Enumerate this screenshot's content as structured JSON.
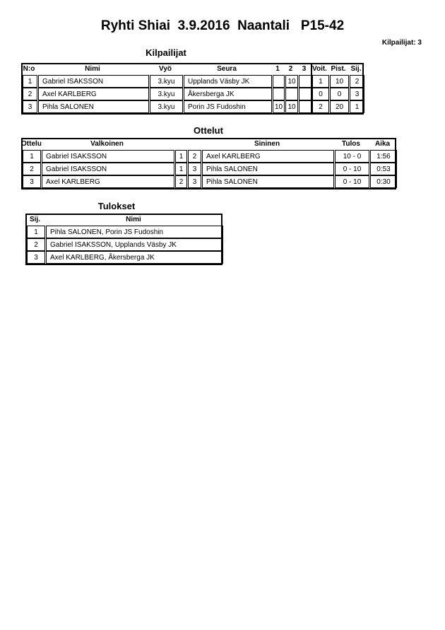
{
  "title": "Ryhti Shiai  3.9.2016  Naantali   P15-42",
  "competitor_count": "Kilpailijat: 3",
  "competitors": {
    "heading": "Kilpailijat",
    "headers": [
      "N:o",
      "Nimi",
      "Vyö",
      "Seura",
      "1",
      "2",
      "3",
      "Voit.",
      "Pist.",
      "Sij."
    ],
    "rows": [
      [
        "1",
        "Gabriel ISAKSSON",
        "3.kyu",
        "Upplands Väsby JK",
        "",
        "10",
        "",
        "1",
        "10",
        "2"
      ],
      [
        "2",
        "Axel KARLBERG",
        "3.kyu",
        "Åkersberga JK",
        "",
        "",
        "",
        "0",
        "0",
        "3"
      ],
      [
        "3",
        "Pihla SALONEN",
        "3.kyu",
        "Porin JS Fudoshin",
        "10",
        "10",
        "",
        "2",
        "20",
        "1"
      ]
    ]
  },
  "matches": {
    "heading": "Ottelut",
    "headers": [
      "Ottelu",
      "Valkoinen",
      "",
      "",
      "Sininen",
      "Tulos",
      "Aika"
    ],
    "rows": [
      [
        "1",
        "Gabriel ISAKSSON",
        "1",
        "2",
        "Axel KARLBERG",
        "10 - 0",
        "1:56"
      ],
      [
        "2",
        "Gabriel ISAKSSON",
        "1",
        "3",
        "Pihla SALONEN",
        "0 - 10",
        "0:53"
      ],
      [
        "3",
        "Axel KARLBERG",
        "2",
        "3",
        "Pihla SALONEN",
        "0 - 10",
        "0:30"
      ]
    ]
  },
  "results": {
    "heading": "Tulokset",
    "headers": [
      "Sij.",
      "Nimi"
    ],
    "rows": [
      [
        "1",
        "Pihla SALONEN, Porin JS Fudoshin"
      ],
      [
        "2",
        "Gabriel ISAKSSON, Upplands Väsby JK"
      ],
      [
        "3",
        "Axel KARLBERG, Åkersberga JK"
      ]
    ]
  }
}
